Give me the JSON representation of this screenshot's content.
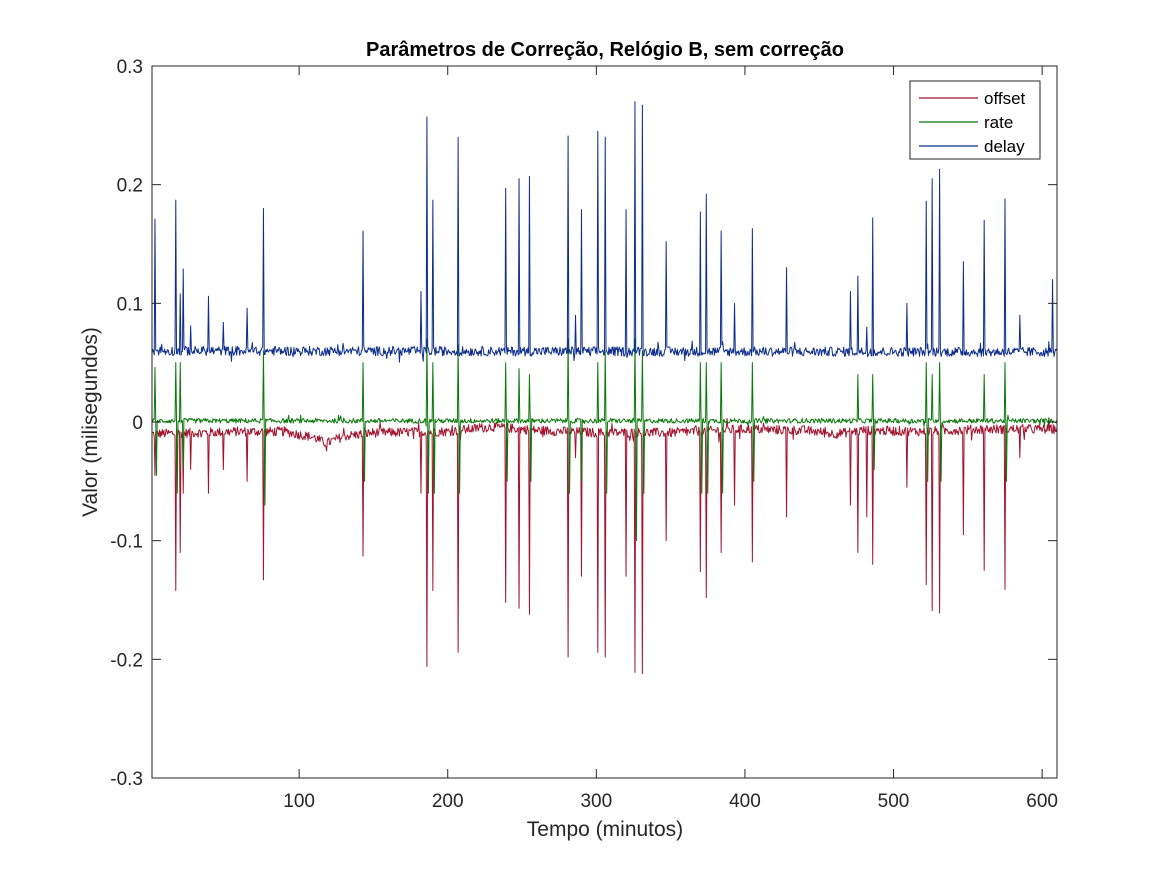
{
  "chart_data": {
    "type": "line",
    "title": "Parâmetros de Correção, Relógio B, sem correção",
    "xlabel": "Tempo (minutos)",
    "ylabel": "Valor (milisegundos)",
    "xlim": [
      1,
      610
    ],
    "ylim": [
      -0.3,
      0.3
    ],
    "xticks": [
      100,
      200,
      300,
      400,
      500,
      600
    ],
    "xtick_labels": [
      "100",
      "200",
      "300",
      "400",
      "500",
      "600"
    ],
    "yticks": [
      -0.3,
      -0.2,
      -0.1,
      0,
      0.1,
      0.2,
      0.3
    ],
    "ytick_labels": [
      "-0.3",
      "-0.2",
      "-0.1",
      "0",
      "0.1",
      "0.2",
      "0.3"
    ],
    "grid": false,
    "legend_position": "top-right",
    "series": [
      {
        "name": "offset",
        "color": "#A2142F",
        "baseline": [
          [
            1,
            -0.01
          ],
          [
            60,
            -0.008
          ],
          [
            90,
            -0.008
          ],
          [
            110,
            -0.013
          ],
          [
            118,
            -0.018
          ],
          [
            130,
            -0.012
          ],
          [
            150,
            -0.009
          ],
          [
            200,
            -0.008
          ],
          [
            230,
            -0.004
          ],
          [
            260,
            -0.007
          ],
          [
            300,
            -0.009
          ],
          [
            350,
            -0.009
          ],
          [
            400,
            -0.006
          ],
          [
            440,
            -0.007
          ],
          [
            460,
            -0.01
          ],
          [
            480,
            -0.007
          ],
          [
            520,
            -0.008
          ],
          [
            560,
            -0.006
          ],
          [
            610,
            -0.006
          ]
        ],
        "noise": 0.004,
        "spikes": [
          [
            3,
            -0.045
          ],
          [
            17,
            -0.142
          ],
          [
            20,
            -0.11
          ],
          [
            22,
            -0.06
          ],
          [
            27,
            -0.04
          ],
          [
            39,
            -0.06
          ],
          [
            49,
            -0.04
          ],
          [
            65,
            -0.05
          ],
          [
            76,
            -0.133
          ],
          [
            143,
            -0.113
          ],
          [
            182,
            -0.06
          ],
          [
            186,
            -0.206
          ],
          [
            190,
            -0.142
          ],
          [
            207,
            -0.194
          ],
          [
            239,
            -0.152
          ],
          [
            248,
            -0.157
          ],
          [
            255,
            -0.162
          ],
          [
            281,
            -0.198
          ],
          [
            286,
            -0.03
          ],
          [
            290,
            -0.13
          ],
          [
            301,
            -0.194
          ],
          [
            306,
            -0.198
          ],
          [
            320,
            -0.13
          ],
          [
            326,
            -0.211
          ],
          [
            331,
            -0.212
          ],
          [
            347,
            -0.1
          ],
          [
            370,
            -0.126
          ],
          [
            374,
            -0.148
          ],
          [
            384,
            -0.11
          ],
          [
            393,
            -0.07
          ],
          [
            405,
            -0.118
          ],
          [
            428,
            -0.08
          ],
          [
            471,
            -0.07
          ],
          [
            476,
            -0.11
          ],
          [
            482,
            -0.08
          ],
          [
            486,
            -0.12
          ],
          [
            509,
            -0.055
          ],
          [
            522,
            -0.137
          ],
          [
            526,
            -0.159
          ],
          [
            531,
            -0.161
          ],
          [
            547,
            -0.095
          ],
          [
            561,
            -0.125
          ],
          [
            575,
            -0.141
          ],
          [
            585,
            -0.03
          ]
        ]
      },
      {
        "name": "rate",
        "color": "#0B7A0B",
        "baseline": [
          [
            1,
            0.001
          ],
          [
            610,
            0.001
          ]
        ],
        "noise": 0.002,
        "spikes": [
          [
            3,
            0.046
          ],
          [
            4,
            -0.045
          ],
          [
            17,
            0.05
          ],
          [
            18,
            -0.06
          ],
          [
            20,
            0.05
          ],
          [
            22,
            -0.04
          ],
          [
            76,
            0.06
          ],
          [
            77,
            -0.07
          ],
          [
            143,
            0.05
          ],
          [
            144,
            -0.05
          ],
          [
            186,
            0.07
          ],
          [
            187,
            -0.06
          ],
          [
            190,
            0.05
          ],
          [
            191,
            -0.06
          ],
          [
            207,
            0.065
          ],
          [
            208,
            -0.06
          ],
          [
            239,
            0.05
          ],
          [
            240,
            -0.05
          ],
          [
            248,
            0.045
          ],
          [
            255,
            0.04
          ],
          [
            256,
            -0.05
          ],
          [
            281,
            0.07
          ],
          [
            282,
            -0.06
          ],
          [
            290,
            -0.05
          ],
          [
            301,
            0.05
          ],
          [
            306,
            0.06
          ],
          [
            307,
            -0.06
          ],
          [
            326,
            0.07
          ],
          [
            327,
            -0.1
          ],
          [
            331,
            0.06
          ],
          [
            332,
            -0.06
          ],
          [
            370,
            0.05
          ],
          [
            371,
            -0.06
          ],
          [
            374,
            0.05
          ],
          [
            375,
            -0.06
          ],
          [
            384,
            0.05
          ],
          [
            385,
            -0.06
          ],
          [
            405,
            0.05
          ],
          [
            406,
            -0.05
          ],
          [
            476,
            0.04
          ],
          [
            486,
            0.04
          ],
          [
            487,
            -0.04
          ],
          [
            522,
            0.05
          ],
          [
            523,
            -0.05
          ],
          [
            526,
            0.04
          ],
          [
            531,
            0.05
          ],
          [
            532,
            -0.05
          ],
          [
            561,
            0.04
          ],
          [
            575,
            0.05
          ],
          [
            576,
            -0.05
          ]
        ]
      },
      {
        "name": "delay",
        "color": "#0E2E8C",
        "baseline": [
          [
            1,
            0.06
          ],
          [
            610,
            0.059
          ]
        ],
        "noise": 0.004,
        "spikes": [
          [
            3,
            0.171
          ],
          [
            17,
            0.187
          ],
          [
            20,
            0.108
          ],
          [
            22,
            0.129
          ],
          [
            27,
            0.081
          ],
          [
            39,
            0.106
          ],
          [
            49,
            0.084
          ],
          [
            65,
            0.096
          ],
          [
            76,
            0.18
          ],
          [
            143,
            0.161
          ],
          [
            182,
            0.11
          ],
          [
            186,
            0.257
          ],
          [
            190,
            0.187
          ],
          [
            207,
            0.24
          ],
          [
            239,
            0.197
          ],
          [
            248,
            0.205
          ],
          [
            255,
            0.207
          ],
          [
            281,
            0.241
          ],
          [
            286,
            0.09
          ],
          [
            290,
            0.179
          ],
          [
            301,
            0.245
          ],
          [
            306,
            0.24
          ],
          [
            320,
            0.179
          ],
          [
            326,
            0.27
          ],
          [
            331,
            0.267
          ],
          [
            347,
            0.152
          ],
          [
            370,
            0.177
          ],
          [
            374,
            0.192
          ],
          [
            384,
            0.161
          ],
          [
            393,
            0.1
          ],
          [
            405,
            0.163
          ],
          [
            428,
            0.13
          ],
          [
            471,
            0.11
          ],
          [
            476,
            0.123
          ],
          [
            482,
            0.08
          ],
          [
            486,
            0.172
          ],
          [
            509,
            0.1
          ],
          [
            522,
            0.186
          ],
          [
            526,
            0.205
          ],
          [
            531,
            0.213
          ],
          [
            547,
            0.135
          ],
          [
            561,
            0.17
          ],
          [
            575,
            0.188
          ],
          [
            585,
            0.09
          ],
          [
            607,
            0.12
          ]
        ]
      }
    ]
  }
}
